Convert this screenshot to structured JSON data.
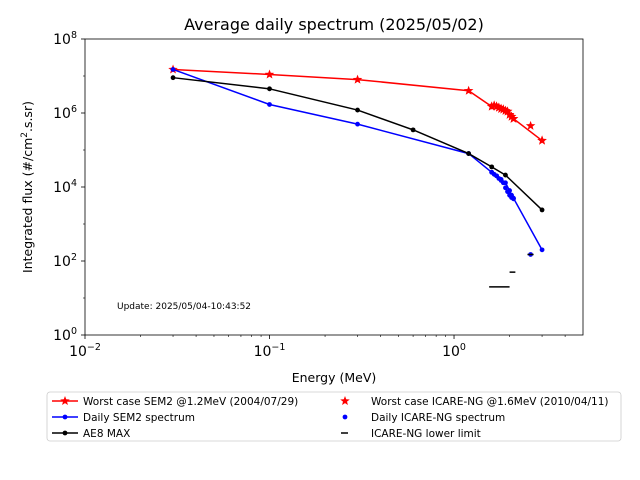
{
  "chart_data": {
    "type": "scatter",
    "title": "Average daily spectrum (2025/05/02)",
    "xlabel": "Energy (MeV)",
    "ylabel_base": "Integrated flux (#/cm",
    "ylabel_sup": "2",
    "ylabel_tail": ".s.sr)",
    "xscale": "log",
    "yscale": "log",
    "xlim": [
      0.01,
      5
    ],
    "ylim": [
      1,
      100000000
    ],
    "x_ticks": [
      {
        "value": 0.01,
        "base": "10",
        "exp": "−2"
      },
      {
        "value": 0.1,
        "base": "10",
        "exp": "−1"
      },
      {
        "value": 1,
        "base": "10",
        "exp": "0"
      }
    ],
    "y_ticks": [
      {
        "value": 1,
        "base": "10",
        "exp": "0"
      },
      {
        "value": 100,
        "base": "10",
        "exp": "2"
      },
      {
        "value": 10000,
        "base": "10",
        "exp": "4"
      },
      {
        "value": 1000000,
        "base": "10",
        "exp": "6"
      },
      {
        "value": 100000000,
        "base": "10",
        "exp": "8"
      }
    ],
    "annotation": "Update: 2025/05/04-10:43:52",
    "grid": false,
    "legend_position": "below",
    "series": [
      {
        "name": "Worst case SEM2 @1.2MeV (2004/07/29)",
        "color": "#ff0000",
        "style": "line",
        "marker": "star",
        "x": [
          0.03,
          0.1,
          0.3,
          1.2,
          1.6,
          1.65,
          1.7,
          1.75,
          1.8,
          1.85,
          1.9,
          1.95,
          2.0,
          2.05,
          2.1,
          3.0
        ],
        "y": [
          15000000,
          11000000,
          8000000,
          4000000,
          1500000,
          1600000,
          1500000,
          1400000,
          1300000,
          1250000,
          1150000,
          1100000,
          900000,
          800000,
          700000,
          180000
        ]
      },
      {
        "name": "Daily SEM2 spectrum",
        "color": "#0000ff",
        "style": "line",
        "marker": "dot",
        "x": [
          0.03,
          0.1,
          0.3,
          1.2,
          1.6,
          1.7,
          1.8,
          1.9,
          2.0,
          2.05,
          2.1,
          3.0
        ],
        "y": [
          15000000,
          1700000,
          500000,
          80000,
          25000,
          20000,
          16000,
          13000,
          8000,
          6000,
          5000,
          200
        ]
      },
      {
        "name": "AE8 MAX",
        "color": "#000000",
        "style": "line",
        "marker": "dot",
        "x": [
          0.03,
          0.1,
          0.3,
          0.6,
          1.2,
          1.6,
          1.9,
          3.0
        ],
        "y": [
          9000000,
          4500000,
          1200000,
          350000,
          80000,
          35000,
          21000,
          2400
        ]
      },
      {
        "name": "Worst case ICARE-NG @1.6MeV (2010/04/11)",
        "color": "#ff0000",
        "style": "points",
        "marker": "star",
        "x": [
          1.6,
          1.65,
          1.7,
          1.75,
          1.8,
          1.85,
          1.9,
          1.95,
          2.0,
          2.05,
          2.1,
          2.6,
          3.0
        ],
        "y": [
          1500000,
          1600000,
          1500000,
          1400000,
          1300000,
          1250000,
          1150000,
          1100000,
          900000,
          800000,
          700000,
          450000,
          180000
        ]
      },
      {
        "name": "Daily ICARE-NG spectrum",
        "color": "#0000ff",
        "style": "points",
        "marker": "dot",
        "x": [
          1.6,
          1.65,
          1.7,
          1.75,
          1.8,
          1.85,
          1.9,
          1.95,
          2.0,
          2.05,
          2.1,
          2.6
        ],
        "y": [
          25000,
          22000,
          20000,
          17000,
          15000,
          13000,
          9500,
          7500,
          6000,
          5200,
          4800,
          150
        ]
      },
      {
        "name": "ICARE-NG lower limit",
        "color": "#000000",
        "style": "hbar",
        "marker": "dash",
        "segments": [
          {
            "x": [
              1.55,
              2.0
            ],
            "y": 20
          },
          {
            "x": [
              2.0,
              2.15
            ],
            "y": 50
          },
          {
            "x": [
              2.5,
              2.7
            ],
            "y": 150
          }
        ]
      }
    ]
  },
  "legend": {
    "items": [
      {
        "label": "Worst case SEM2 @1.2MeV (2004/07/29)",
        "series": 0
      },
      {
        "label": "Worst case ICARE-NG @1.6MeV (2010/04/11)",
        "series": 3
      },
      {
        "label": "Daily SEM2 spectrum",
        "series": 1
      },
      {
        "label": "Daily ICARE-NG spectrum",
        "series": 4
      },
      {
        "label": "AE8 MAX",
        "series": 2
      },
      {
        "label": "ICARE-NG lower limit",
        "series": 5
      }
    ]
  }
}
